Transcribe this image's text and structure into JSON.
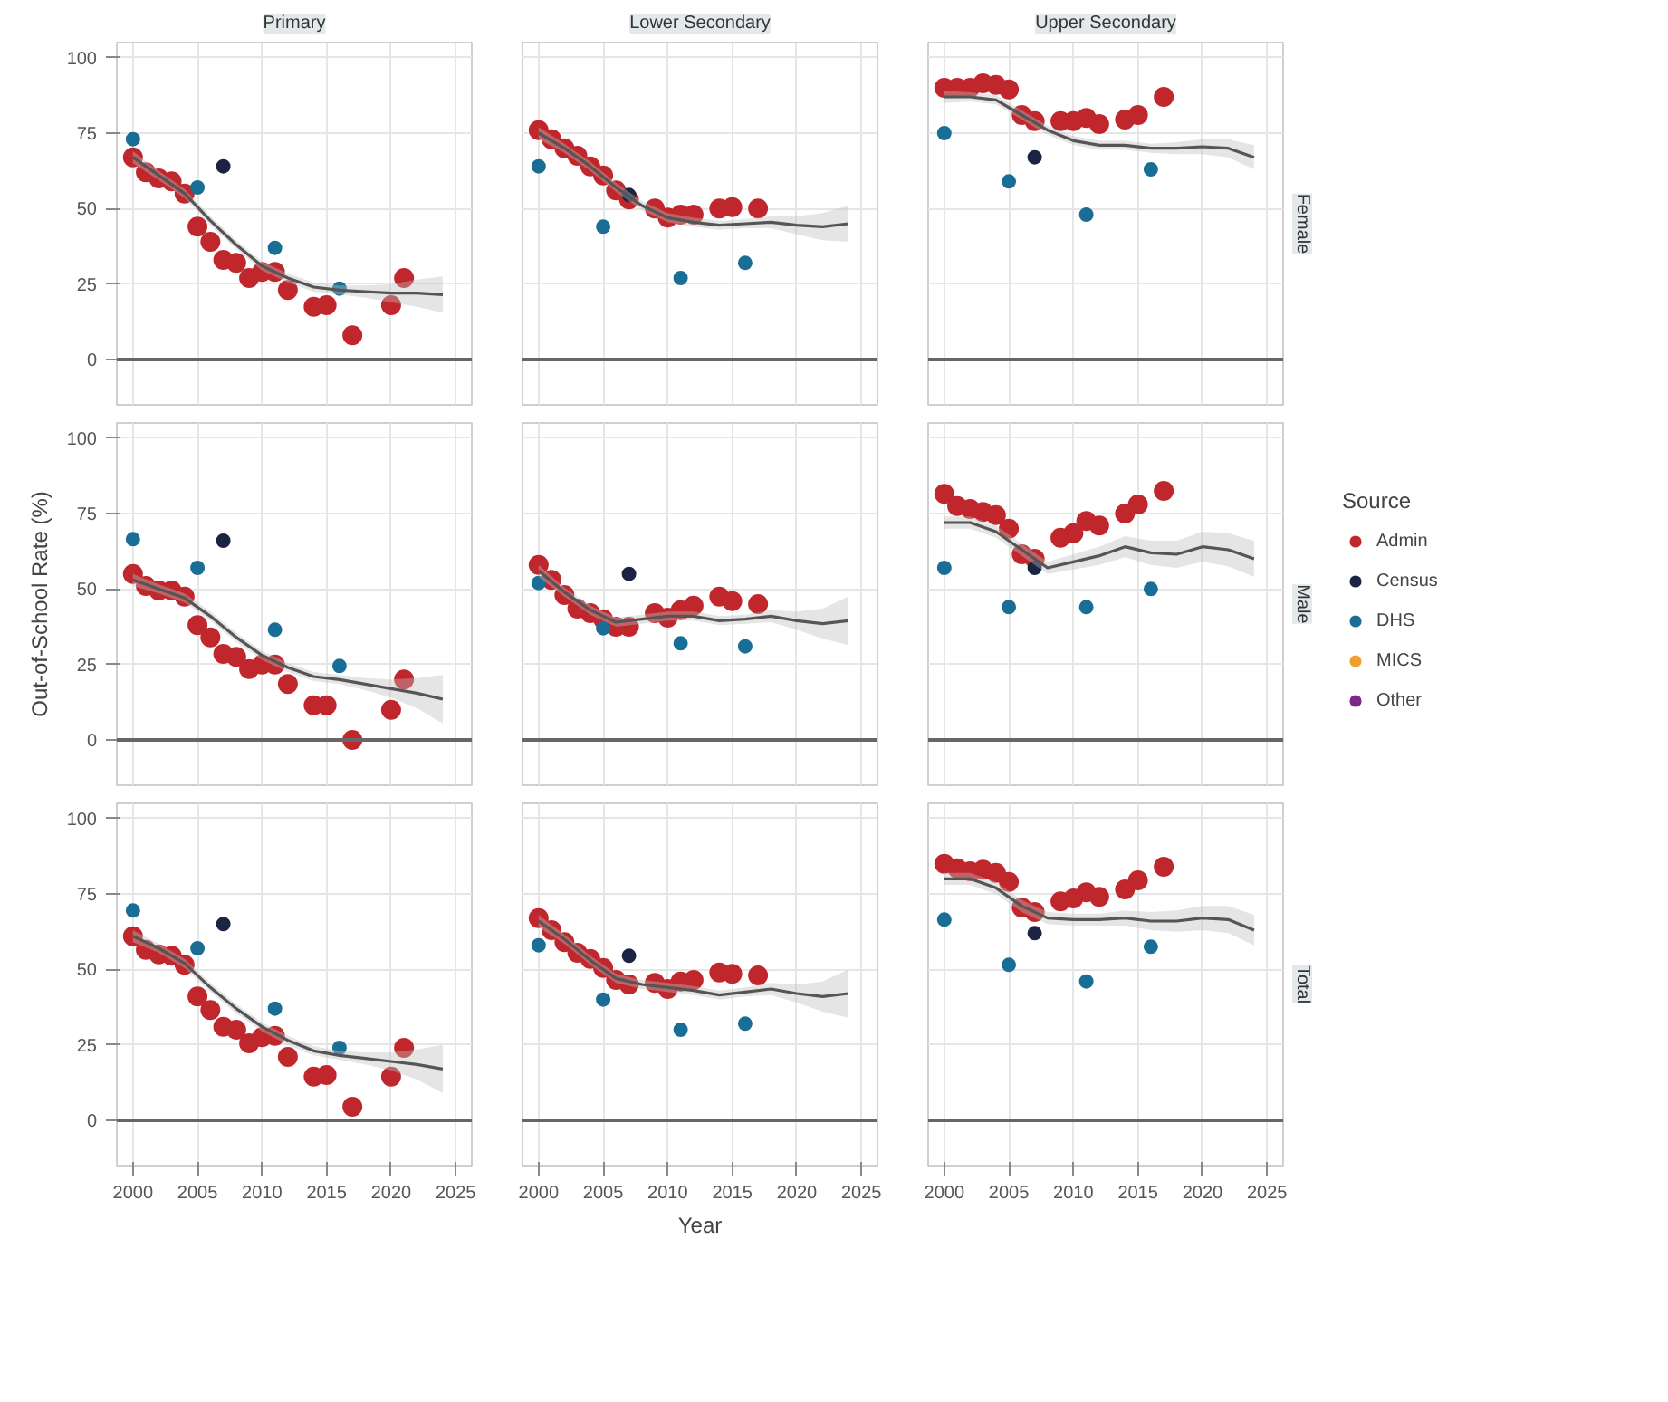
{
  "chart_data": [
    {
      "type": "scatter",
      "title": "Primary",
      "xlim": [
        1998.75,
        2026.25
      ],
      "ylim": [
        -15,
        105
      ],
      "xticks": [
        2000,
        2005,
        2010,
        2015,
        2020,
        2025
      ],
      "yticks": [
        0,
        25,
        50,
        75,
        100
      ],
      "tick_labels": "y",
      "grid": true,
      "marker": "circle",
      "ref_lines": [
        {
          "axis": "y",
          "value": 0,
          "color": "#666666"
        }
      ],
      "series": [
        {
          "color": "#c0272d",
          "x": [
            2000,
            2001,
            2002,
            2003,
            2004,
            2005,
            2006,
            2007,
            2008,
            2009,
            2010,
            2011,
            2012,
            2014,
            2015,
            2017,
            2020,
            2021
          ],
          "values": [
            67,
            62,
            60,
            59,
            55,
            44,
            39,
            33,
            32,
            27,
            29,
            29,
            23,
            17.5,
            18,
            8,
            18,
            27
          ]
        },
        {
          "color": "#1c2444",
          "x": [
            2007
          ],
          "values": [
            64
          ]
        },
        {
          "color": "#1a6e96",
          "x": [
            2000,
            2005,
            2011,
            2016
          ],
          "values": [
            73,
            57,
            37,
            23.5
          ]
        },
        {
          "type": "line",
          "marker": "none",
          "color": "#555555",
          "x": [
            2000,
            2002,
            2004,
            2006,
            2008,
            2010,
            2012,
            2014,
            2016,
            2018,
            2020,
            2022,
            2024
          ],
          "values": [
            67,
            61,
            55,
            46,
            38,
            31,
            27,
            24,
            23,
            22.5,
            22,
            22,
            21.5
          ],
          "lower": [
            65,
            59.5,
            53.5,
            44.5,
            36.5,
            29.5,
            25.5,
            22.5,
            21.5,
            20.5,
            19,
            17.5,
            15.5
          ],
          "upper": [
            69,
            62.5,
            56.5,
            47.5,
            39.5,
            32.5,
            28.5,
            25.5,
            24.5,
            24.5,
            25,
            26.5,
            27.5
          ]
        }
      ]
    },
    {
      "type": "scatter",
      "title": "Lower Secondary",
      "xlim": [
        1998.75,
        2026.25
      ],
      "ylim": [
        -15,
        105
      ],
      "xticks": [
        2000,
        2005,
        2010,
        2015,
        2020,
        2025
      ],
      "yticks": [
        0,
        25,
        50,
        75,
        100
      ],
      "tick_labels": false,
      "grid": true,
      "marker": "circle",
      "ref_lines": [
        {
          "axis": "y",
          "value": 0,
          "color": "#666666"
        }
      ],
      "series": [
        {
          "color": "#c0272d",
          "x": [
            2000,
            2001,
            2002,
            2003,
            2004,
            2005,
            2006,
            2007,
            2009,
            2010,
            2011,
            2012,
            2014,
            2015,
            2017
          ],
          "values": [
            76,
            73,
            70,
            67.5,
            64,
            61,
            56,
            53,
            50,
            47,
            48,
            48,
            50,
            50.5,
            50
          ]
        },
        {
          "color": "#1c2444",
          "x": [
            2007
          ],
          "values": [
            54.5
          ]
        },
        {
          "color": "#1a6e96",
          "x": [
            2000,
            2005,
            2011,
            2016
          ],
          "values": [
            64,
            44,
            27,
            32
          ]
        },
        {
          "type": "line",
          "marker": "none",
          "color": "#555555",
          "x": [
            2000,
            2002,
            2004,
            2006,
            2008,
            2010,
            2012,
            2014,
            2016,
            2018,
            2020,
            2022,
            2024
          ],
          "values": [
            75,
            70,
            64,
            57,
            51,
            47,
            45.5,
            44.5,
            45,
            45.5,
            44.5,
            44,
            45
          ],
          "lower": [
            73,
            68.5,
            62.5,
            55.5,
            49.5,
            45.5,
            44,
            43,
            43.5,
            43.5,
            41.5,
            39.5,
            39
          ],
          "upper": [
            77,
            71.5,
            65.5,
            58.5,
            52.5,
            48.5,
            47,
            46,
            46.5,
            47.5,
            47.5,
            48.5,
            51
          ]
        }
      ]
    },
    {
      "type": "scatter",
      "title": "Upper Secondary",
      "annotations": [
        "Female"
      ],
      "xlim": [
        1998.75,
        2026.25
      ],
      "ylim": [
        -15,
        105
      ],
      "xticks": [
        2000,
        2005,
        2010,
        2015,
        2020,
        2025
      ],
      "yticks": [
        0,
        25,
        50,
        75,
        100
      ],
      "tick_labels": false,
      "grid": true,
      "marker": "circle",
      "ref_lines": [
        {
          "axis": "y",
          "value": 0,
          "color": "#666666"
        }
      ],
      "series": [
        {
          "color": "#c0272d",
          "x": [
            2000,
            2001,
            2002,
            2003,
            2004,
            2005,
            2006,
            2007,
            2009,
            2010,
            2011,
            2012,
            2014,
            2015,
            2017
          ],
          "values": [
            90,
            90,
            90,
            91.5,
            91,
            89.5,
            81,
            79,
            79,
            79,
            80,
            78,
            79.5,
            81,
            87
          ]
        },
        {
          "color": "#1c2444",
          "x": [
            2007
          ],
          "values": [
            67
          ]
        },
        {
          "color": "#1a6e96",
          "x": [
            2000,
            2005,
            2011,
            2016
          ],
          "values": [
            75,
            59,
            48,
            63
          ]
        },
        {
          "type": "line",
          "marker": "none",
          "color": "#555555",
          "x": [
            2000,
            2002,
            2004,
            2006,
            2008,
            2010,
            2012,
            2014,
            2016,
            2018,
            2020,
            2022,
            2024
          ],
          "values": [
            87,
            87,
            86,
            81,
            76,
            72.5,
            71,
            71,
            70,
            70,
            70.5,
            70,
            67
          ],
          "lower": [
            85,
            85.5,
            84.5,
            79.5,
            74.5,
            71,
            69.5,
            69.5,
            68.5,
            68,
            68,
            67,
            63
          ],
          "upper": [
            89,
            88.5,
            87.5,
            82.5,
            77.5,
            74,
            72.5,
            72.5,
            71.5,
            72,
            73,
            73,
            71
          ]
        }
      ]
    },
    {
      "type": "scatter",
      "ylabel": "Out-of-School Rate (%)",
      "xlim": [
        1998.75,
        2026.25
      ],
      "ylim": [
        -15,
        105
      ],
      "xticks": [
        2000,
        2005,
        2010,
        2015,
        2020,
        2025
      ],
      "yticks": [
        0,
        25,
        50,
        75,
        100
      ],
      "tick_labels": "y",
      "grid": true,
      "marker": "circle",
      "ref_lines": [
        {
          "axis": "y",
          "value": 0,
          "color": "#666666"
        }
      ],
      "series": [
        {
          "color": "#c0272d",
          "x": [
            2000,
            2001,
            2002,
            2003,
            2004,
            2005,
            2006,
            2007,
            2008,
            2009,
            2010,
            2011,
            2012,
            2014,
            2015,
            2017,
            2020,
            2021
          ],
          "values": [
            55,
            51,
            49.5,
            49.5,
            47.5,
            38,
            34,
            28.5,
            27.5,
            23.5,
            25,
            25,
            18.5,
            11.5,
            11.5,
            0,
            10,
            20
          ]
        },
        {
          "color": "#1c2444",
          "x": [
            2007
          ],
          "values": [
            66
          ]
        },
        {
          "color": "#1a6e96",
          "x": [
            2000,
            2005,
            2011,
            2016
          ],
          "values": [
            66.5,
            57,
            36.5,
            24.5
          ]
        },
        {
          "type": "line",
          "marker": "none",
          "color": "#555555",
          "x": [
            2000,
            2002,
            2004,
            2006,
            2008,
            2010,
            2012,
            2014,
            2016,
            2018,
            2020,
            2022,
            2024
          ],
          "values": [
            53,
            50,
            47,
            41,
            34,
            28,
            24,
            21,
            20,
            18.5,
            17,
            15.5,
            13.5
          ],
          "lower": [
            51,
            48.5,
            45.5,
            39.5,
            32.5,
            26.5,
            22.5,
            19.5,
            18.5,
            16.5,
            14,
            10.5,
            5.5
          ],
          "upper": [
            55,
            51.5,
            48.5,
            42.5,
            35.5,
            29.5,
            25.5,
            22.5,
            21.5,
            20.5,
            20,
            20.5,
            21.5
          ]
        }
      ]
    },
    {
      "type": "scatter",
      "xlim": [
        1998.75,
        2026.25
      ],
      "ylim": [
        -15,
        105
      ],
      "xticks": [
        2000,
        2005,
        2010,
        2015,
        2020,
        2025
      ],
      "yticks": [
        0,
        25,
        50,
        75,
        100
      ],
      "tick_labels": false,
      "grid": true,
      "marker": "circle",
      "ref_lines": [
        {
          "axis": "y",
          "value": 0,
          "color": "#666666"
        }
      ],
      "series": [
        {
          "color": "#c0272d",
          "x": [
            2000,
            2001,
            2002,
            2003,
            2004,
            2005,
            2006,
            2007,
            2009,
            2010,
            2011,
            2012,
            2014,
            2015,
            2017
          ],
          "values": [
            58,
            53,
            48,
            43.5,
            42,
            40,
            37.5,
            37.5,
            42,
            40.5,
            43,
            44.5,
            47.5,
            46,
            45
          ]
        },
        {
          "color": "#1c2444",
          "x": [
            2007
          ],
          "values": [
            55
          ]
        },
        {
          "color": "#1a6e96",
          "x": [
            2000,
            2005,
            2011,
            2016
          ],
          "values": [
            52,
            37,
            32,
            31
          ]
        },
        {
          "type": "line",
          "marker": "none",
          "color": "#555555",
          "x": [
            2000,
            2002,
            2004,
            2006,
            2008,
            2010,
            2012,
            2014,
            2016,
            2018,
            2020,
            2022,
            2024
          ],
          "values": [
            56,
            49,
            43,
            39,
            40,
            41,
            41,
            39.5,
            40,
            41,
            39.5,
            38.5,
            39.5
          ],
          "lower": [
            54,
            47.5,
            41.5,
            37.5,
            38.5,
            39.5,
            39.5,
            38,
            38.5,
            39,
            36.5,
            33.5,
            31.5
          ],
          "upper": [
            58,
            50.5,
            44.5,
            40.5,
            41.5,
            42.5,
            42.5,
            41,
            41.5,
            43,
            42.5,
            43.5,
            47.5
          ]
        }
      ]
    },
    {
      "type": "scatter",
      "annotations": [
        "Male"
      ],
      "legend": "right",
      "legend_title": "Source",
      "xlim": [
        1998.75,
        2026.25
      ],
      "ylim": [
        -15,
        105
      ],
      "xticks": [
        2000,
        2005,
        2010,
        2015,
        2020,
        2025
      ],
      "yticks": [
        0,
        25,
        50,
        75,
        100
      ],
      "tick_labels": false,
      "grid": true,
      "marker": "circle",
      "ref_lines": [
        {
          "axis": "y",
          "value": 0,
          "color": "#666666"
        }
      ],
      "series": [
        {
          "name": "Admin",
          "color": "#c0272d",
          "x": [
            2000,
            2001,
            2002,
            2003,
            2004,
            2005,
            2006,
            2007,
            2009,
            2010,
            2011,
            2012,
            2014,
            2015,
            2017
          ],
          "values": [
            81.5,
            77.5,
            76.5,
            75.5,
            74.5,
            70,
            61.5,
            60,
            67,
            68.5,
            72.5,
            71,
            75,
            78,
            82.5
          ]
        },
        {
          "name": "Census",
          "color": "#1c2444",
          "x": [
            2007
          ],
          "values": [
            57
          ]
        },
        {
          "name": "DHS",
          "color": "#1a6e96",
          "x": [
            2000,
            2005,
            2011,
            2016
          ],
          "values": [
            57,
            44,
            44,
            50
          ]
        },
        {
          "name": "MICS",
          "color": "#f0a030"
        },
        {
          "name": "Other",
          "color": "#7b2a8a"
        },
        {
          "type": "line",
          "marker": "none",
          "color": "#555555",
          "x": [
            2000,
            2002,
            2004,
            2006,
            2008,
            2010,
            2012,
            2014,
            2016,
            2018,
            2020,
            2022,
            2024
          ],
          "values": [
            72,
            72,
            69,
            63,
            57,
            59,
            61,
            64,
            62,
            61.5,
            64,
            63,
            60
          ],
          "lower": [
            70,
            70,
            67,
            61,
            55,
            56.5,
            58,
            60.5,
            58,
            57,
            59,
            57.5,
            54
          ],
          "upper": [
            74,
            74,
            71,
            65,
            59,
            61.5,
            64,
            67.5,
            66,
            66,
            69,
            68.5,
            66
          ]
        }
      ]
    },
    {
      "type": "scatter",
      "xlim": [
        1998.75,
        2026.25
      ],
      "ylim": [
        -15,
        105
      ],
      "xticks": [
        2000,
        2005,
        2010,
        2015,
        2020,
        2025
      ],
      "yticks": [
        0,
        25,
        50,
        75,
        100
      ],
      "grid": true,
      "marker": "circle",
      "ref_lines": [
        {
          "axis": "y",
          "value": 0,
          "color": "#666666"
        }
      ],
      "series": [
        {
          "color": "#c0272d",
          "x": [
            2000,
            2001,
            2002,
            2003,
            2004,
            2005,
            2006,
            2007,
            2008,
            2009,
            2010,
            2011,
            2012,
            2014,
            2015,
            2017,
            2020,
            2021
          ],
          "values": [
            61,
            56.5,
            55,
            54.5,
            51.5,
            41,
            36.5,
            31,
            30,
            25.5,
            27.5,
            28,
            21,
            14.5,
            15,
            4.5,
            14.5,
            24
          ]
        },
        {
          "color": "#1c2444",
          "x": [
            2007
          ],
          "values": [
            65
          ]
        },
        {
          "color": "#1a6e96",
          "x": [
            2000,
            2005,
            2011,
            2016
          ],
          "values": [
            69.5,
            57,
            37,
            24
          ]
        },
        {
          "type": "line",
          "marker": "none",
          "color": "#555555",
          "x": [
            2000,
            2002,
            2004,
            2006,
            2008,
            2010,
            2012,
            2014,
            2016,
            2018,
            2020,
            2022,
            2024
          ],
          "values": [
            61,
            57,
            52,
            44,
            37,
            31,
            26.5,
            23,
            21.5,
            20.5,
            19.5,
            18.5,
            17
          ],
          "lower": [
            59,
            55.5,
            50.5,
            42.5,
            35.5,
            29.5,
            25,
            21.5,
            20,
            18.5,
            16.5,
            13.5,
            9
          ],
          "upper": [
            63,
            58.5,
            53.5,
            45.5,
            38.5,
            32.5,
            28,
            24.5,
            23,
            22.5,
            22.5,
            23.5,
            25
          ]
        }
      ]
    },
    {
      "type": "scatter",
      "xlabel": "Year",
      "xlim": [
        1998.75,
        2026.25
      ],
      "ylim": [
        -15,
        105
      ],
      "xticks": [
        2000,
        2005,
        2010,
        2015,
        2020,
        2025
      ],
      "yticks": [
        0,
        25,
        50,
        75,
        100
      ],
      "tick_labels": "x",
      "grid": true,
      "marker": "circle",
      "ref_lines": [
        {
          "axis": "y",
          "value": 0,
          "color": "#666666"
        }
      ],
      "series": [
        {
          "color": "#c0272d",
          "x": [
            2000,
            2001,
            2002,
            2003,
            2004,
            2005,
            2006,
            2007,
            2009,
            2010,
            2011,
            2012,
            2014,
            2015,
            2017
          ],
          "values": [
            67,
            63,
            59,
            55.5,
            53.5,
            50.5,
            46.5,
            45,
            45.5,
            43.5,
            46,
            46.5,
            49,
            48.5,
            48
          ]
        },
        {
          "color": "#1c2444",
          "x": [
            2007
          ],
          "values": [
            54.5
          ]
        },
        {
          "color": "#1a6e96",
          "x": [
            2000,
            2005,
            2011,
            2016
          ],
          "values": [
            58,
            40,
            30,
            32
          ]
        },
        {
          "type": "line",
          "marker": "none",
          "color": "#555555",
          "x": [
            2000,
            2002,
            2004,
            2006,
            2008,
            2010,
            2012,
            2014,
            2016,
            2018,
            2020,
            2022,
            2024
          ],
          "values": [
            66,
            60,
            53,
            47,
            45,
            44,
            43,
            41.5,
            42.5,
            43.5,
            42,
            41,
            42
          ],
          "lower": [
            64,
            58.5,
            51.5,
            45.5,
            43.5,
            42.5,
            41.5,
            40,
            41,
            41.5,
            39,
            36,
            34
          ],
          "upper": [
            68,
            61.5,
            54.5,
            48.5,
            46.5,
            45.5,
            44.5,
            43,
            44,
            45.5,
            45,
            46,
            50
          ]
        }
      ]
    },
    {
      "type": "scatter",
      "annotations": [
        "Total"
      ],
      "xlim": [
        1998.75,
        2026.25
      ],
      "ylim": [
        -15,
        105
      ],
      "xticks": [
        2000,
        2005,
        2010,
        2015,
        2020,
        2025
      ],
      "yticks": [
        0,
        25,
        50,
        75,
        100
      ],
      "tick_labels": "x",
      "grid": true,
      "marker": "circle",
      "ref_lines": [
        {
          "axis": "y",
          "value": 0,
          "color": "#666666"
        }
      ],
      "series": [
        {
          "color": "#c0272d",
          "x": [
            2000,
            2001,
            2002,
            2003,
            2004,
            2005,
            2006,
            2007,
            2009,
            2010,
            2011,
            2012,
            2014,
            2015,
            2017
          ],
          "values": [
            85,
            83.5,
            82.5,
            83,
            82,
            79,
            70.5,
            69,
            72.5,
            73.5,
            75.5,
            74,
            76.5,
            79.5,
            84
          ]
        },
        {
          "color": "#1c2444",
          "x": [
            2007
          ],
          "values": [
            62
          ]
        },
        {
          "color": "#1a6e96",
          "x": [
            2000,
            2005,
            2011,
            2016
          ],
          "values": [
            66.5,
            51.5,
            46,
            57.5
          ]
        },
        {
          "type": "line",
          "marker": "none",
          "color": "#555555",
          "x": [
            2000,
            2002,
            2004,
            2006,
            2008,
            2010,
            2012,
            2014,
            2016,
            2018,
            2020,
            2022,
            2024
          ],
          "values": [
            80,
            80,
            77,
            71,
            67,
            66.5,
            66.5,
            67,
            66,
            66,
            67,
            66.5,
            63
          ],
          "lower": [
            78,
            78,
            75,
            69,
            65,
            64.5,
            64.5,
            64.5,
            63,
            62.5,
            63,
            62,
            58
          ],
          "upper": [
            82,
            82,
            79,
            73,
            69,
            68.5,
            68.5,
            69.5,
            69,
            69.5,
            71,
            71,
            68
          ]
        }
      ]
    }
  ]
}
